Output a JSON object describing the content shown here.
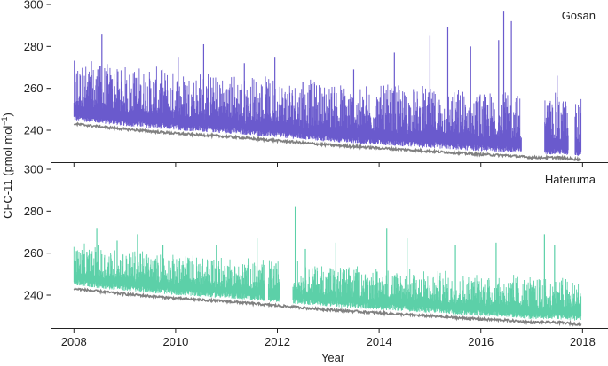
{
  "chart_data": {
    "type": "line",
    "ylabel_main": "CFC-11 (pmol mol",
    "ylabel_sup": "−1",
    "ylabel_end": ")",
    "xlabel": "Year",
    "x_ticks": [
      2008,
      2010,
      2012,
      2014,
      2016,
      2018
    ],
    "xlim": [
      2007.55,
      2018.5
    ],
    "colors": {
      "gosan": "#6a5acd",
      "hateruma": "#5cd0a8",
      "baseline": "#808080"
    },
    "panels": [
      {
        "name": "Gosan",
        "ylim": [
          225,
          300
        ],
        "y_ticks": [
          240,
          260,
          280,
          300
        ],
        "baseline": {
          "x": [
            2008.0,
            2009.0,
            2010.0,
            2011.0,
            2012.0,
            2013.0,
            2014.0,
            2015.0,
            2016.0,
            2016.5,
            2017.0,
            2017.5,
            2018.0
          ],
          "y": [
            243,
            240.5,
            238.5,
            237,
            235,
            233,
            231.5,
            230,
            228.5,
            228,
            227,
            227,
            226
          ]
        },
        "gaps": [
          [
            2016.8,
            2017.25
          ],
          [
            2017.72,
            2017.85
          ]
        ],
        "spikes": [
          {
            "x": 2008.55,
            "y": 286
          },
          {
            "x": 2008.47,
            "y": 269
          },
          {
            "x": 2009.2,
            "y": 265
          },
          {
            "x": 2010.05,
            "y": 275
          },
          {
            "x": 2010.55,
            "y": 281
          },
          {
            "x": 2011.35,
            "y": 272
          },
          {
            "x": 2011.95,
            "y": 275
          },
          {
            "x": 2012.5,
            "y": 263
          },
          {
            "x": 2013.5,
            "y": 269
          },
          {
            "x": 2014.3,
            "y": 277
          },
          {
            "x": 2015.0,
            "y": 285
          },
          {
            "x": 2015.35,
            "y": 289
          },
          {
            "x": 2015.8,
            "y": 280
          },
          {
            "x": 2016.45,
            "y": 297
          },
          {
            "x": 2016.6,
            "y": 292
          },
          {
            "x": 2016.35,
            "y": 283
          },
          {
            "x": 2017.5,
            "y": 266
          }
        ],
        "y_min": 226,
        "y_max": 300
      },
      {
        "name": "Hateruma",
        "ylim": [
          225,
          300
        ],
        "y_ticks": [
          240,
          260,
          280,
          300
        ],
        "baseline": {
          "x": [
            2008.0,
            2009.0,
            2010.0,
            2011.0,
            2012.0,
            2013.0,
            2014.0,
            2015.0,
            2016.0,
            2016.5,
            2017.0,
            2017.5,
            2018.0
          ],
          "y": [
            243,
            240.5,
            238.5,
            237,
            235,
            233,
            231.5,
            230,
            228.5,
            228,
            227,
            227,
            226
          ]
        },
        "gaps": [
          [
            2011.75,
            2011.82
          ],
          [
            2012.05,
            2012.3
          ]
        ],
        "spikes": [
          {
            "x": 2008.05,
            "y": 261
          },
          {
            "x": 2008.45,
            "y": 272
          },
          {
            "x": 2008.85,
            "y": 266
          },
          {
            "x": 2009.25,
            "y": 269
          },
          {
            "x": 2009.75,
            "y": 264
          },
          {
            "x": 2010.8,
            "y": 264
          },
          {
            "x": 2011.6,
            "y": 267
          },
          {
            "x": 2012.35,
            "y": 282
          },
          {
            "x": 2012.55,
            "y": 262
          },
          {
            "x": 2013.15,
            "y": 265
          },
          {
            "x": 2014.15,
            "y": 272
          },
          {
            "x": 2014.55,
            "y": 267
          },
          {
            "x": 2015.5,
            "y": 264
          },
          {
            "x": 2016.3,
            "y": 265
          },
          {
            "x": 2017.25,
            "y": 269
          },
          {
            "x": 2017.45,
            "y": 264
          }
        ],
        "y_min": 226,
        "y_max": 300
      }
    ]
  }
}
